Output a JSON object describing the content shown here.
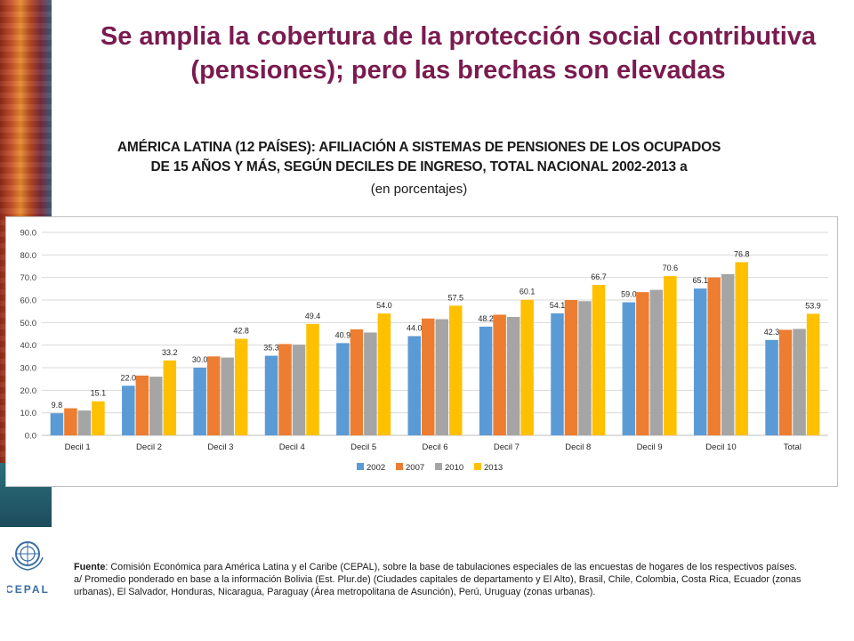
{
  "slide": {
    "title": "Se amplia la cobertura de la protección social contributiva (pensiones); pero las brechas son elevadas"
  },
  "chart_header": {
    "title_line1": "AMÉRICA LATINA (12 PAÍSES): AFILIACIÓN A SISTEMAS DE PENSIONES DE LOS OCUPADOS",
    "title_line2": "DE 15 AÑOS Y MÁS, SEGÚN DECILES DE INGRESO, TOTAL NACIONAL 2002-2013 a",
    "subtitle": "(en porcentajes)"
  },
  "footer": {
    "source_label": "Fuente",
    "source_text": ": Comisión Económica para América Latina y el Caribe (CEPAL), sobre la base de tabulaciones especiales de las encuestas de hogares de los respectivos países.",
    "note_text": "a/ Promedio ponderado en base a la información Bolivia (Est. Plur.de) (Ciudades capitales de departamento y El Alto), Brasil, Chile, Colombia, Costa Rica, Ecuador (zonas urbanas), El Salvador, Honduras, Nicaragua, Paraguay (Área metropolitana de Asunción), Perú, Uruguay (zonas urbanas)."
  },
  "logos": {
    "cepal_text": "CEPAL"
  },
  "chart_data": {
    "type": "bar",
    "categories": [
      "Decil 1",
      "Decil 2",
      "Decil 3",
      "Decil 4",
      "Decil 5",
      "Decil 6",
      "Decil 7",
      "Decil 8",
      "Decil 9",
      "Decil 10",
      "Total"
    ],
    "series": [
      {
        "name": "2002",
        "color": "#5b9bd5",
        "values": [
          9.8,
          22.0,
          30.0,
          35.3,
          40.9,
          44.0,
          48.2,
          54.1,
          59.0,
          65.1,
          42.3
        ],
        "labeled": true
      },
      {
        "name": "2007",
        "color": "#ed7d31",
        "values": [
          12.0,
          26.5,
          35.0,
          40.5,
          47.0,
          51.8,
          53.5,
          60.0,
          63.5,
          70.0,
          46.8
        ],
        "labeled": false
      },
      {
        "name": "2010",
        "color": "#a5a5a5",
        "values": [
          11.0,
          26.0,
          34.5,
          40.2,
          45.6,
          51.5,
          52.5,
          59.5,
          64.5,
          71.5,
          47.2
        ],
        "labeled": false
      },
      {
        "name": "2013",
        "color": "#ffc000",
        "values": [
          15.1,
          33.2,
          42.8,
          49.4,
          54.0,
          57.5,
          60.1,
          66.7,
          70.6,
          76.8,
          53.9
        ],
        "labeled": true
      }
    ],
    "ylim": [
      0,
      90
    ],
    "yticks": [
      "0.0",
      "10.0",
      "20.0",
      "30.0",
      "40.0",
      "50.0",
      "60.0",
      "70.0",
      "80.0",
      "90.0"
    ],
    "grid": true,
    "legend_position": "bottom"
  }
}
